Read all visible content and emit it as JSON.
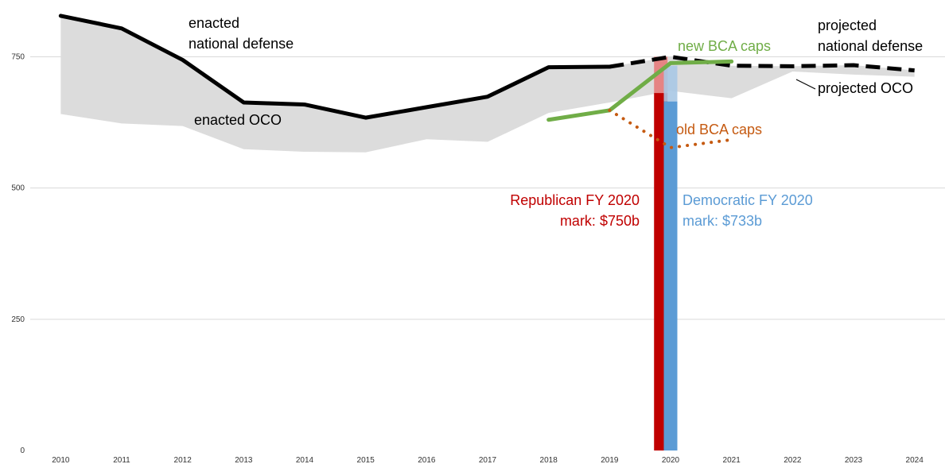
{
  "chart_data": {
    "type": "line",
    "x": [
      2010,
      2011,
      2012,
      2013,
      2014,
      2015,
      2016,
      2017,
      2018,
      2019,
      2020,
      2021,
      2022,
      2023,
      2024
    ],
    "xlim": [
      2009.5,
      2024.5
    ],
    "ylim": [
      0,
      840
    ],
    "yticks": [
      0,
      250,
      500,
      750
    ],
    "grid": true,
    "legend": "none",
    "series": [
      {
        "name": "enacted national defense",
        "style": "solid",
        "color": "#000000",
        "points": [
          [
            2010,
            828
          ],
          [
            2011,
            804
          ],
          [
            2012,
            744
          ],
          [
            2013,
            663
          ],
          [
            2014,
            659
          ],
          [
            2015,
            634
          ],
          [
            2016,
            654
          ],
          [
            2017,
            674
          ],
          [
            2018,
            730
          ],
          [
            2019,
            731
          ]
        ]
      },
      {
        "name": "projected national defense",
        "style": "dashed",
        "color": "#000000",
        "points": [
          [
            2019,
            731
          ],
          [
            2020,
            750
          ],
          [
            2021,
            733
          ],
          [
            2022,
            732
          ],
          [
            2023,
            734
          ],
          [
            2024,
            724
          ]
        ]
      },
      {
        "name": "new BCA caps",
        "style": "solid",
        "color": "#70ad47",
        "points": [
          [
            2018,
            630
          ],
          [
            2019,
            648
          ],
          [
            2020,
            738
          ],
          [
            2021,
            741
          ]
        ]
      },
      {
        "name": "old BCA caps",
        "style": "dotted",
        "color": "#c55a11",
        "points": [
          [
            2019,
            648
          ],
          [
            2020,
            577
          ],
          [
            2021,
            592
          ]
        ]
      }
    ],
    "band": {
      "name": "enacted OCO",
      "color": "#dcdcdc",
      "upper": [
        [
          2010,
          828
        ],
        [
          2011,
          804
        ],
        [
          2012,
          744
        ],
        [
          2013,
          663
        ],
        [
          2014,
          659
        ],
        [
          2015,
          634
        ],
        [
          2016,
          654
        ],
        [
          2017,
          674
        ],
        [
          2018,
          730
        ],
        [
          2019,
          731
        ],
        [
          2020,
          750
        ],
        [
          2021,
          733
        ],
        [
          2022,
          732
        ],
        [
          2023,
          734
        ],
        [
          2024,
          724
        ]
      ],
      "lower": [
        [
          2010,
          641
        ],
        [
          2011,
          623
        ],
        [
          2012,
          618
        ],
        [
          2013,
          574
        ],
        [
          2014,
          569
        ],
        [
          2015,
          568
        ],
        [
          2016,
          593
        ],
        [
          2017,
          588
        ],
        [
          2018,
          643
        ],
        [
          2019,
          663
        ],
        [
          2020,
          685
        ],
        [
          2021,
          671
        ],
        [
          2022,
          722
        ],
        [
          2023,
          716
        ],
        [
          2024,
          712
        ]
      ]
    },
    "bars": [
      {
        "name": "Republican FY 2020 mark",
        "x": 2019.84,
        "value": 750,
        "base_value": 681,
        "color": "#c00000",
        "top_color": "#e57a7a"
      },
      {
        "name": "Democratic FY 2020 mark",
        "x": 2020.0,
        "value": 733,
        "base_value": 665,
        "color": "#5b9bd5",
        "top_color": "#a9c8e4"
      }
    ]
  },
  "annotations": {
    "enacted_defense_1": "enacted",
    "enacted_defense_2": "national defense",
    "enacted_oco": "enacted OCO",
    "projected_defense_1": "projected",
    "projected_defense_2": "national defense",
    "projected_oco": "projected OCO",
    "new_bca": "new BCA caps",
    "old_bca": "old BCA caps",
    "rep_mark_1": "Republican FY 2020",
    "rep_mark_2": "mark: $750b",
    "dem_mark_1": "Democratic FY 2020",
    "dem_mark_2": "mark: $733b"
  },
  "colors": {
    "republican": "#c00000",
    "democratic": "#5b9bd5",
    "new_bca": "#70ad47",
    "old_bca": "#c55a11",
    "annotation": "#000000"
  }
}
